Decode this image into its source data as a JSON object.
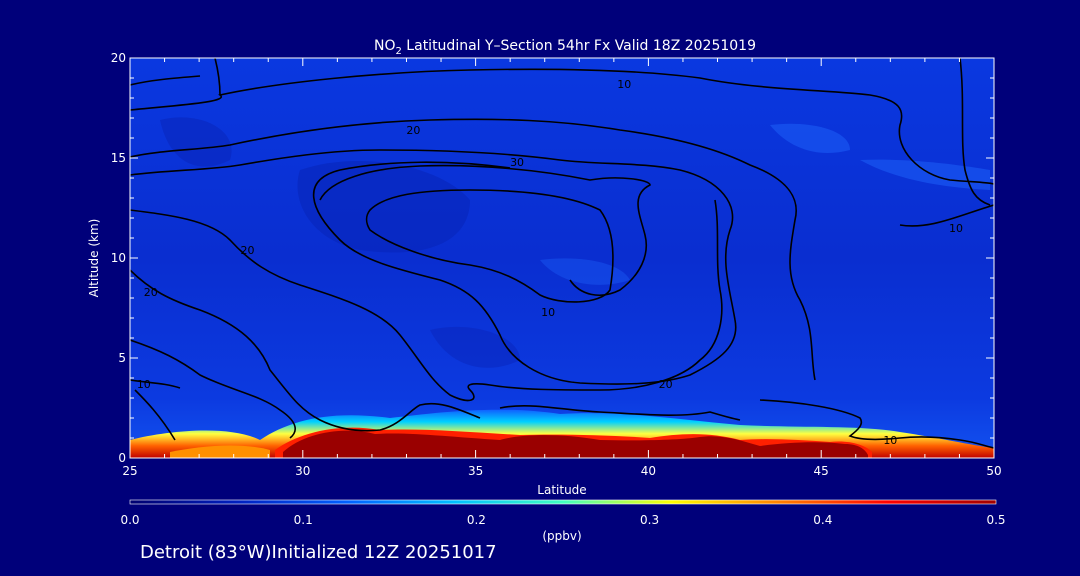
{
  "chart_data": {
    "type": "heatmap",
    "title_pre": "NO",
    "title_sub": "2",
    "title_post": " Latitudinal Y–Section 54hr  Fx Valid 18Z 20251019",
    "xlabel": "Latitude",
    "ylabel": "Altitude (km)",
    "xlim": [
      25,
      50
    ],
    "ylim": [
      0,
      20
    ],
    "xticks": [
      "25",
      "30",
      "35",
      "40",
      "45",
      "50"
    ],
    "xtick_values": [
      25,
      30,
      35,
      40,
      45,
      50
    ],
    "yticks": [
      "0",
      "5",
      "10",
      "15",
      "20"
    ],
    "ytick_values": [
      0,
      5,
      10,
      15,
      20
    ],
    "colorbar": {
      "min": 0.0,
      "max": 0.5,
      "ticks": [
        "0.0",
        "0.1",
        "0.2",
        "0.3",
        "0.4",
        "0.5"
      ],
      "tick_values": [
        0.0,
        0.1,
        0.2,
        0.3,
        0.4,
        0.5
      ],
      "unit": "(ppbv)",
      "colors": [
        "#000070",
        "#0020c0",
        "#0060ff",
        "#00c0ff",
        "#40ffc0",
        "#ffff00",
        "#ff8000",
        "#ff0000",
        "#a00000"
      ]
    },
    "surface_maxima": [
      {
        "lat": 27.8,
        "top_km": 0.6,
        "value": 0.35
      },
      {
        "lat": 31.5,
        "top_km": 1.5,
        "value": 0.5
      },
      {
        "lat": 36.0,
        "top_km": 1.0,
        "value": 0.5
      },
      {
        "lat": 42.0,
        "top_km": 1.0,
        "value": 0.5
      },
      {
        "lat": 45.0,
        "top_km": 0.7,
        "value": 0.5
      }
    ],
    "contour_labels": [
      {
        "text": "10",
        "lat": 39.3,
        "alt": 18.7
      },
      {
        "text": "20",
        "lat": 33.2,
        "alt": 16.4
      },
      {
        "text": "30",
        "lat": 36.2,
        "alt": 14.8
      },
      {
        "text": "20",
        "lat": 28.4,
        "alt": 10.4
      },
      {
        "text": "10",
        "lat": 37.1,
        "alt": 7.3
      },
      {
        "text": "20",
        "lat": 25.6,
        "alt": 8.3
      },
      {
        "text": "20",
        "lat": 40.5,
        "alt": 3.7
      },
      {
        "text": "10",
        "lat": 25.4,
        "alt": 3.7
      },
      {
        "text": "10",
        "lat": 47.0,
        "alt": 0.9
      },
      {
        "text": "10",
        "lat": 48.9,
        "alt": 11.5
      }
    ]
  },
  "footer": "Detroit (83°W)Initialized 12Z 20251017",
  "colors": {
    "background": "#00007a",
    "plot_fill": "#0a30d8",
    "contour": "#000000",
    "text": "#ffffff"
  }
}
